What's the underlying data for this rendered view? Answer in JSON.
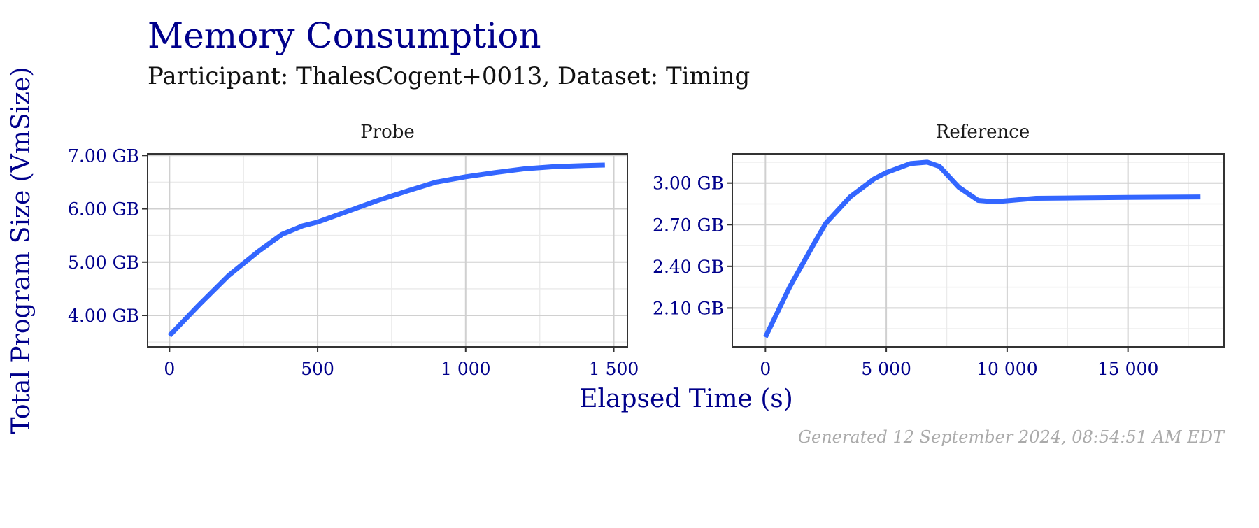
{
  "chart_data": [
    {
      "type": "line",
      "panel": "Probe",
      "title": "Memory Consumption",
      "subtitle": "Participant: ThalesCogent+0013, Dataset: Timing",
      "xlabel": "Elapsed Time (s)",
      "ylabel": "Total Program Size (VmSize)",
      "xlim": [
        -74,
        1546
      ],
      "ylim": [
        3.41,
        7.03
      ],
      "xticks": [
        0,
        500,
        1000,
        1500
      ],
      "xtick_labels": [
        "0",
        "500",
        "1 000",
        "1 500"
      ],
      "yticks": [
        4,
        5,
        6,
        7
      ],
      "ytick_labels": [
        "4.00 GB",
        "5.00 GB",
        "6.00 GB",
        "7.00 GB"
      ],
      "x": [
        0,
        100,
        200,
        300,
        380,
        450,
        500,
        600,
        700,
        800,
        900,
        1000,
        1100,
        1200,
        1300,
        1400,
        1470
      ],
      "y": [
        3.62,
        4.2,
        4.75,
        5.2,
        5.52,
        5.68,
        5.75,
        5.95,
        6.15,
        6.33,
        6.5,
        6.6,
        6.68,
        6.75,
        6.79,
        6.81,
        6.82
      ],
      "grid": true,
      "color": "#3366FF"
    },
    {
      "type": "line",
      "panel": "Reference",
      "xlim": [
        -1370,
        18975
      ],
      "ylim": [
        1.82,
        3.21
      ],
      "xticks": [
        0,
        5000,
        10000,
        15000
      ],
      "xtick_labels": [
        "0",
        "5 000",
        "10 000",
        "15 000"
      ],
      "yticks": [
        2.1,
        2.4,
        2.7,
        3.0
      ],
      "ytick_labels": [
        "2.10 GB",
        "2.40 GB",
        "2.70 GB",
        "3.00 GB"
      ],
      "x": [
        0,
        1000,
        2000,
        2500,
        3500,
        4500,
        5000,
        6000,
        6700,
        7200,
        8000,
        8800,
        9500,
        10500,
        11200,
        13000,
        15000,
        18000
      ],
      "y": [
        1.89,
        2.25,
        2.56,
        2.71,
        2.9,
        3.03,
        3.075,
        3.14,
        3.15,
        3.12,
        2.97,
        2.875,
        2.865,
        2.88,
        2.89,
        2.893,
        2.896,
        2.9
      ],
      "grid": true,
      "color": "#3366FF"
    }
  ],
  "footer": "Generated 12 September 2024, 08:54:51 AM EDT"
}
